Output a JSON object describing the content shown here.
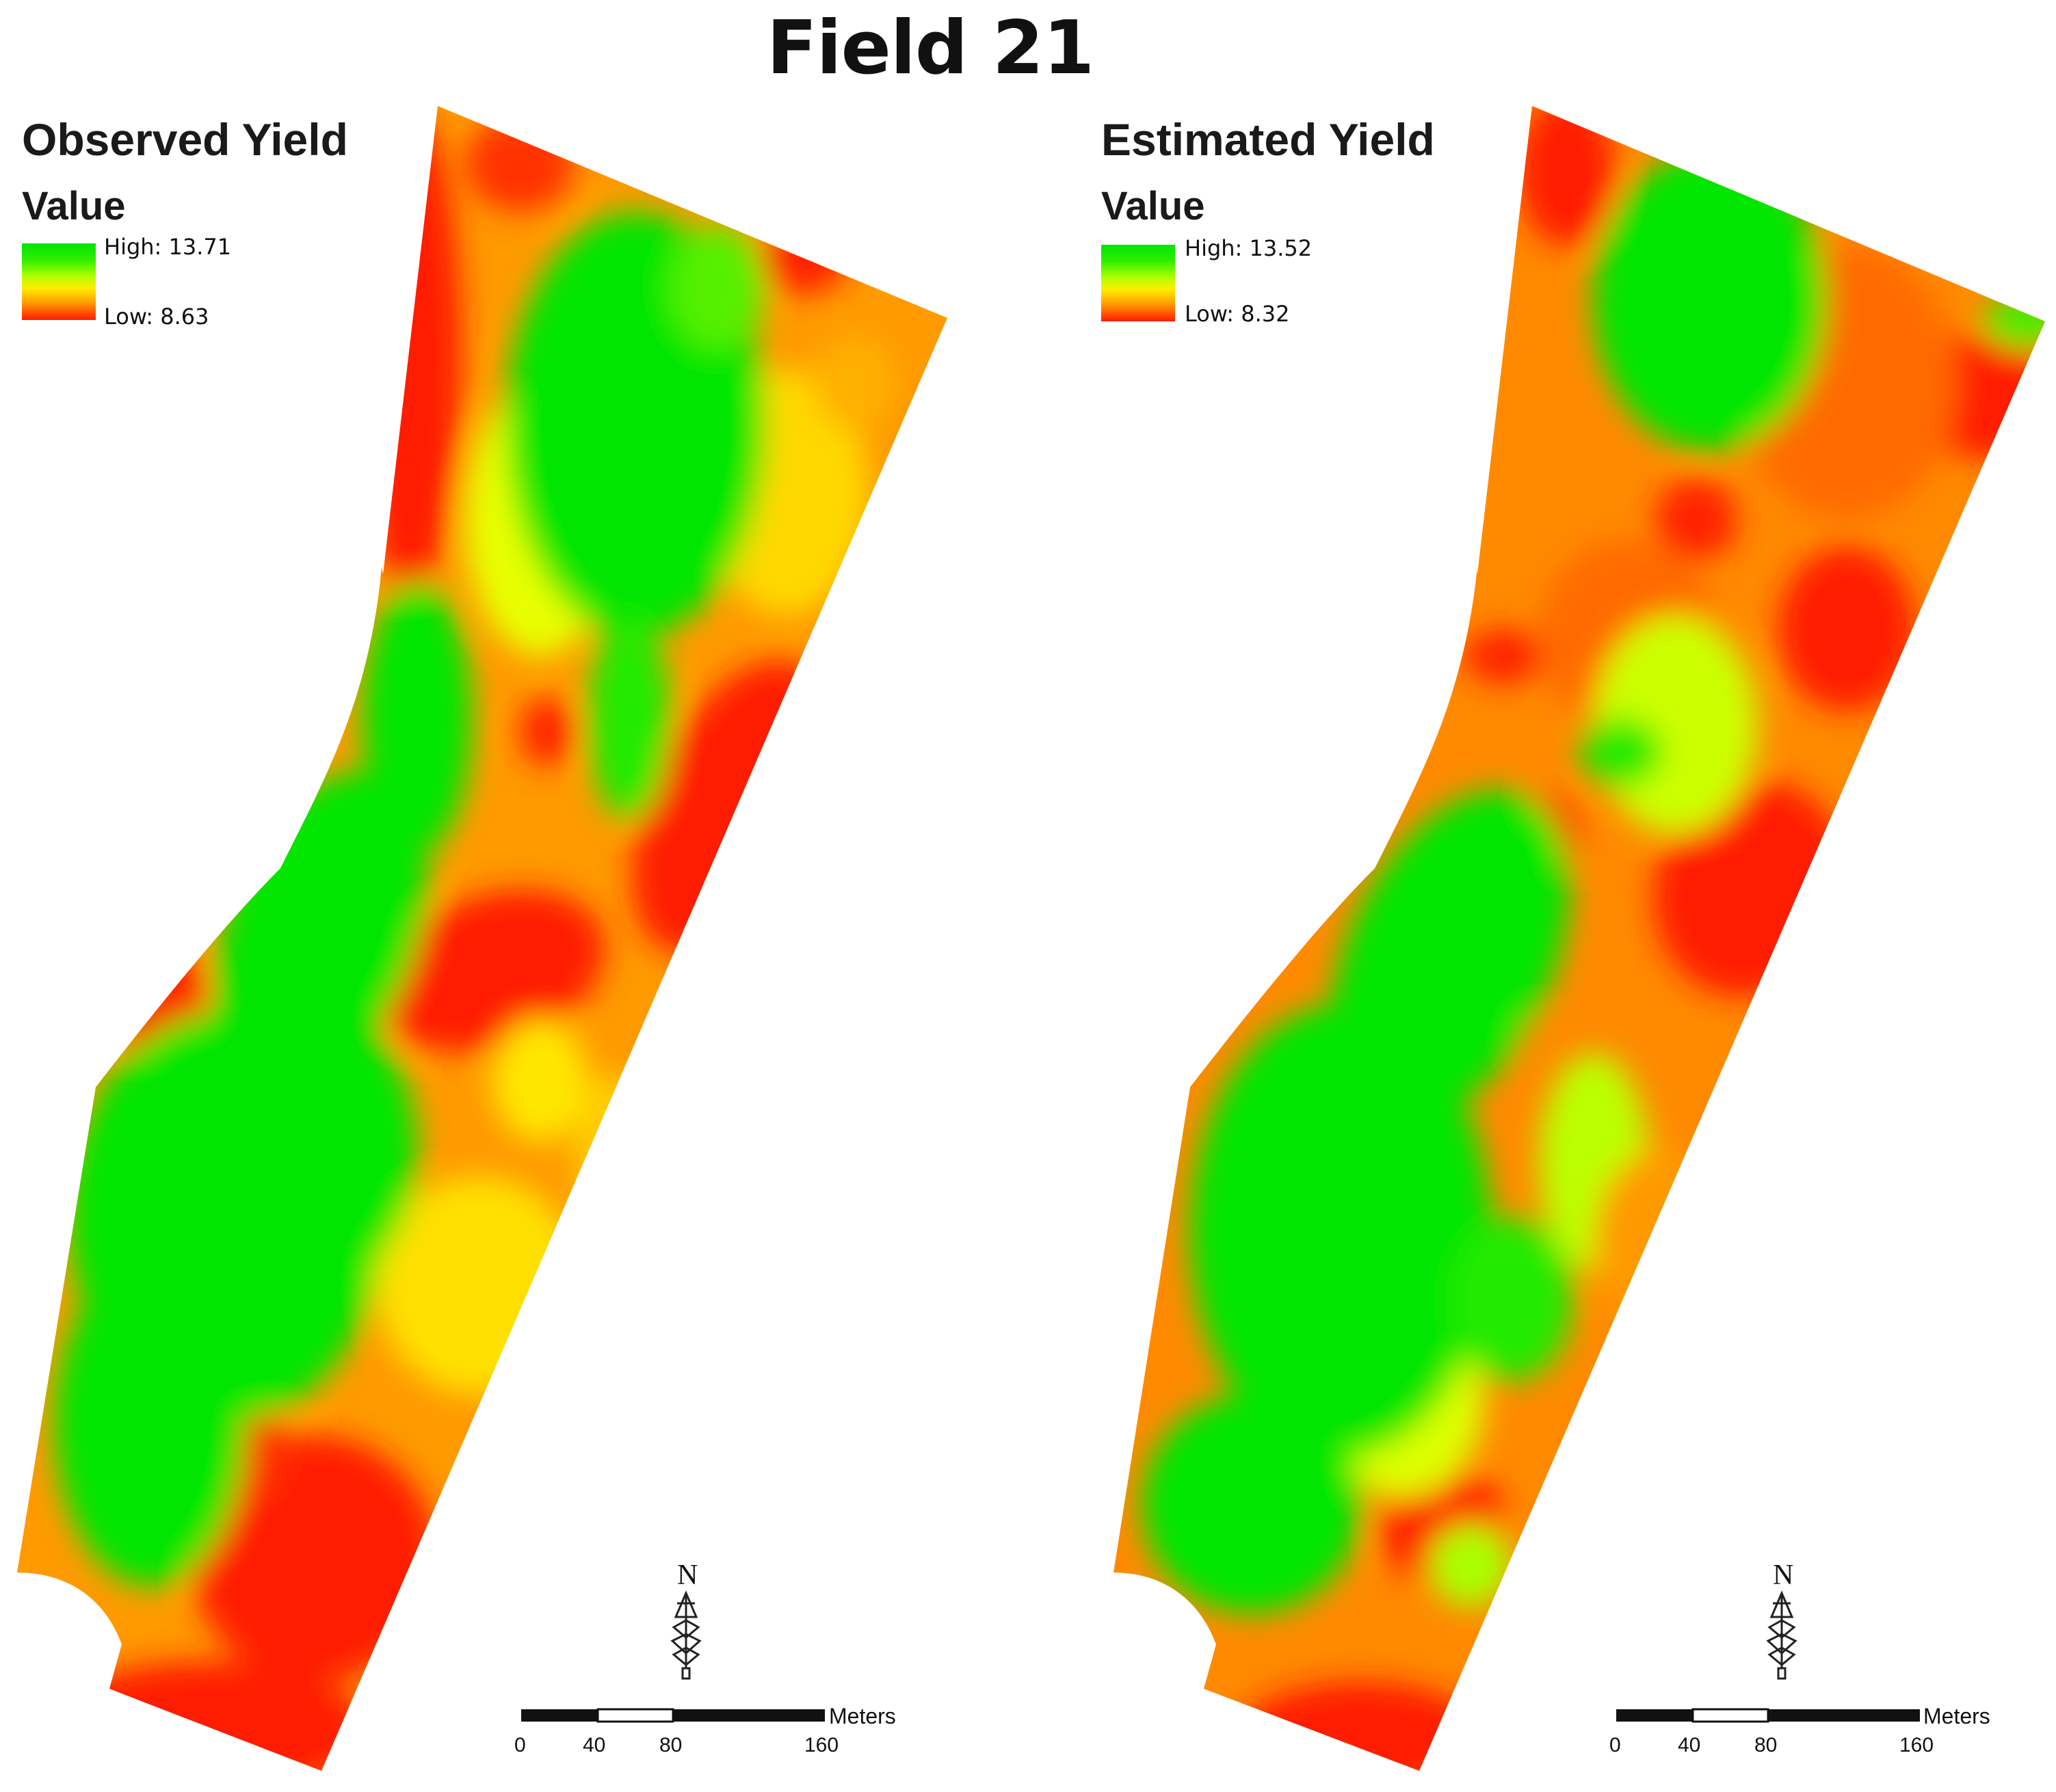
{
  "figure": {
    "title": "Field 21"
  },
  "colors": {
    "high": "#00e600",
    "mid": "#ffee00",
    "low": "#ff1a00"
  },
  "panels": [
    {
      "title": "Observed Yield",
      "legend_title": "Value",
      "high_label": "High: 13.71",
      "low_label": "Low: 8.63",
      "north_label": "N",
      "scale": {
        "unit": "Meters",
        "ticks": [
          "0",
          "40",
          "80",
          "160"
        ]
      }
    },
    {
      "title": "Estimated Yield",
      "legend_title": "Value",
      "high_label": "High: 13.52",
      "low_label": "Low: 8.32",
      "north_label": "N",
      "scale": {
        "unit": "Meters",
        "ticks": [
          "0",
          "40",
          "80",
          "160"
        ]
      }
    }
  ],
  "north_arrow_icon": "north-arrow-icon"
}
